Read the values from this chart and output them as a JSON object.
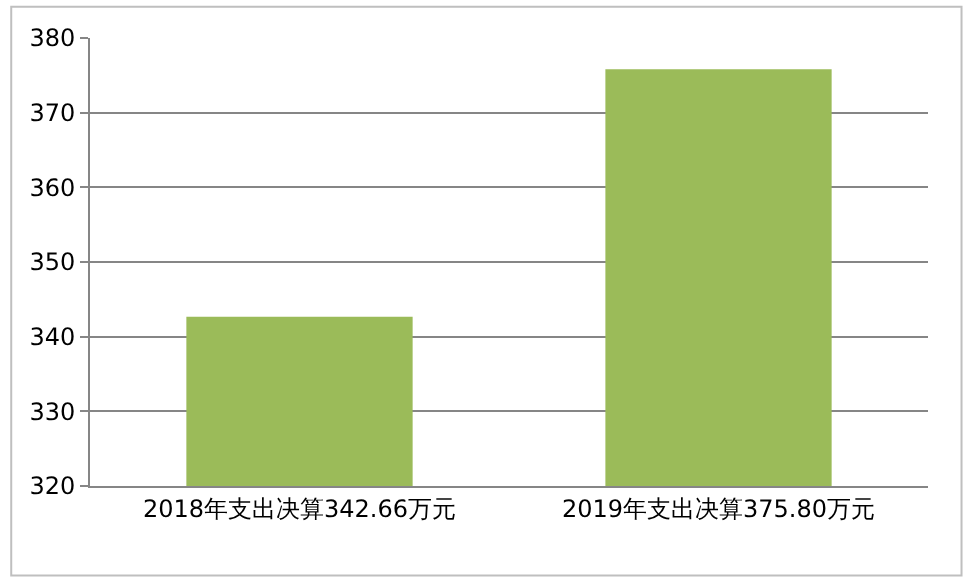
{
  "chart_data": {
    "type": "bar",
    "categories": [
      "2018年支出决算342.66万元",
      "2019年支出决算375.80万元"
    ],
    "values": [
      342.66,
      375.8
    ],
    "color": "#9bbb59",
    "ylim": [
      320,
      380
    ],
    "yticks": [
      320,
      330,
      340,
      350,
      360,
      370,
      380
    ],
    "grid": "y",
    "legend": false
  }
}
